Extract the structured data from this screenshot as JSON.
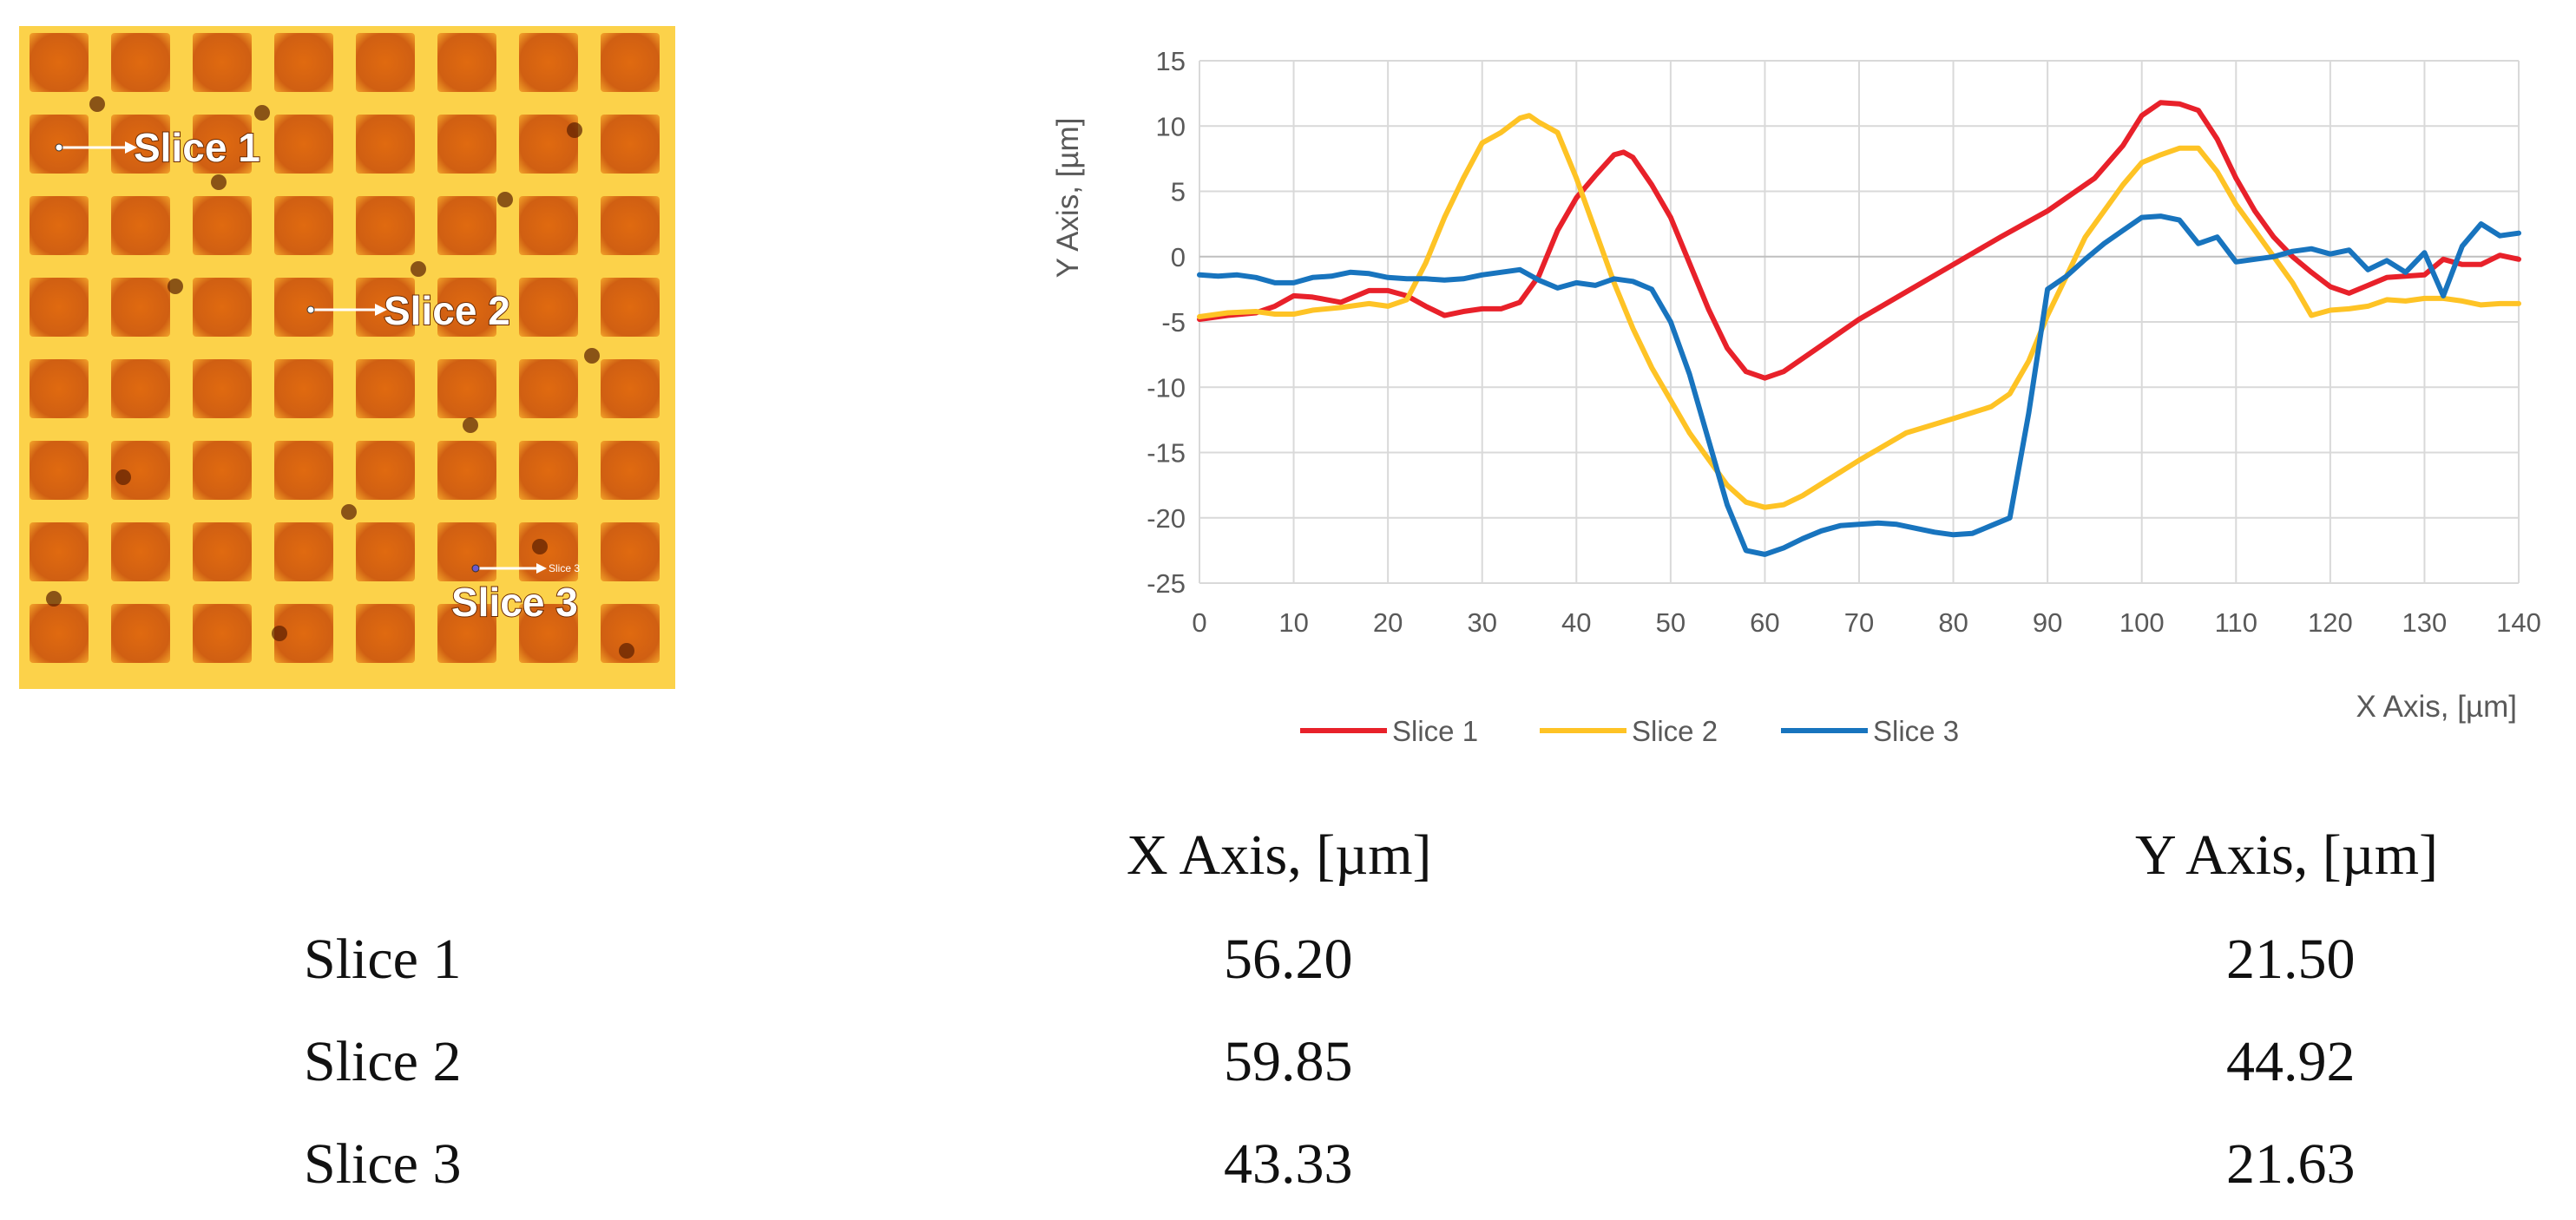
{
  "image_labels": {
    "slice1": "Slice 1",
    "slice2": "Slice 2",
    "slice3": "Slice 3",
    "slice3_small": "Slice 3"
  },
  "chart_data": {
    "type": "line",
    "xlabel": "X Axis, [µm]",
    "ylabel": "Y Axis, [µm]",
    "xlim": [
      0,
      140
    ],
    "ylim": [
      -25,
      15
    ],
    "xticks": [
      0,
      10,
      20,
      30,
      40,
      50,
      60,
      70,
      80,
      90,
      100,
      110,
      120,
      130,
      140
    ],
    "yticks": [
      15,
      10,
      5,
      0,
      -5,
      -10,
      -15,
      -20,
      -25
    ],
    "grid": true,
    "legend": "bottom",
    "series": [
      {
        "name": "Slice 1",
        "color": "#e8212a",
        "points": [
          [
            0,
            -4.8
          ],
          [
            3,
            -4.5
          ],
          [
            6,
            -4.3
          ],
          [
            8,
            -3.8
          ],
          [
            10,
            -3.0
          ],
          [
            12,
            -3.1
          ],
          [
            15,
            -3.5
          ],
          [
            18,
            -2.6
          ],
          [
            20,
            -2.6
          ],
          [
            22,
            -3.0
          ],
          [
            24,
            -3.8
          ],
          [
            26,
            -4.5
          ],
          [
            28,
            -4.2
          ],
          [
            30,
            -4.0
          ],
          [
            32,
            -4.0
          ],
          [
            34,
            -3.5
          ],
          [
            36,
            -1.5
          ],
          [
            38,
            2.0
          ],
          [
            40,
            4.5
          ],
          [
            42,
            6.2
          ],
          [
            44,
            7.8
          ],
          [
            45,
            8.0
          ],
          [
            46,
            7.6
          ],
          [
            48,
            5.5
          ],
          [
            50,
            3.0
          ],
          [
            52,
            -0.5
          ],
          [
            54,
            -4.0
          ],
          [
            56,
            -7.0
          ],
          [
            58,
            -8.8
          ],
          [
            60,
            -9.3
          ],
          [
            62,
            -8.8
          ],
          [
            64,
            -7.8
          ],
          [
            66,
            -6.8
          ],
          [
            68,
            -5.8
          ],
          [
            70,
            -4.8
          ],
          [
            75,
            -2.7
          ],
          [
            80,
            -0.6
          ],
          [
            85,
            1.5
          ],
          [
            90,
            3.5
          ],
          [
            95,
            6.0
          ],
          [
            98,
            8.5
          ],
          [
            100,
            10.8
          ],
          [
            102,
            11.8
          ],
          [
            104,
            11.7
          ],
          [
            106,
            11.2
          ],
          [
            108,
            9.0
          ],
          [
            110,
            6.0
          ],
          [
            112,
            3.5
          ],
          [
            114,
            1.5
          ],
          [
            116,
            0
          ],
          [
            118,
            -1.2
          ],
          [
            120,
            -2.3
          ],
          [
            122,
            -2.8
          ],
          [
            124,
            -2.2
          ],
          [
            126,
            -1.6
          ],
          [
            128,
            -1.5
          ],
          [
            130,
            -1.4
          ],
          [
            132,
            -0.2
          ],
          [
            134,
            -0.6
          ],
          [
            136,
            -0.6
          ],
          [
            138,
            0.1
          ],
          [
            140,
            -0.2
          ]
        ]
      },
      {
        "name": "Slice 2",
        "color": "#fec325",
        "points": [
          [
            0,
            -4.6
          ],
          [
            3,
            -4.3
          ],
          [
            6,
            -4.2
          ],
          [
            8,
            -4.4
          ],
          [
            10,
            -4.4
          ],
          [
            12,
            -4.1
          ],
          [
            15,
            -3.9
          ],
          [
            18,
            -3.6
          ],
          [
            20,
            -3.8
          ],
          [
            22,
            -3.3
          ],
          [
            24,
            -0.5
          ],
          [
            26,
            3.0
          ],
          [
            28,
            6.0
          ],
          [
            30,
            8.7
          ],
          [
            32,
            9.5
          ],
          [
            34,
            10.6
          ],
          [
            35,
            10.8
          ],
          [
            36,
            10.3
          ],
          [
            38,
            9.5
          ],
          [
            40,
            6.0
          ],
          [
            42,
            2.0
          ],
          [
            44,
            -2.0
          ],
          [
            46,
            -5.5
          ],
          [
            48,
            -8.5
          ],
          [
            50,
            -11.0
          ],
          [
            52,
            -13.5
          ],
          [
            54,
            -15.5
          ],
          [
            56,
            -17.5
          ],
          [
            58,
            -18.8
          ],
          [
            60,
            -19.2
          ],
          [
            62,
            -19.0
          ],
          [
            64,
            -18.3
          ],
          [
            66,
            -17.4
          ],
          [
            68,
            -16.5
          ],
          [
            70,
            -15.6
          ],
          [
            75,
            -13.5
          ],
          [
            80,
            -12.4
          ],
          [
            84,
            -11.5
          ],
          [
            86,
            -10.5
          ],
          [
            88,
            -8.0
          ],
          [
            90,
            -4.5
          ],
          [
            92,
            -1.5
          ],
          [
            94,
            1.5
          ],
          [
            96,
            3.5
          ],
          [
            98,
            5.5
          ],
          [
            100,
            7.2
          ],
          [
            102,
            7.8
          ],
          [
            104,
            8.3
          ],
          [
            106,
            8.3
          ],
          [
            108,
            6.5
          ],
          [
            110,
            4.0
          ],
          [
            112,
            2.0
          ],
          [
            114,
            0
          ],
          [
            116,
            -2.0
          ],
          [
            118,
            -4.5
          ],
          [
            120,
            -4.1
          ],
          [
            122,
            -4.0
          ],
          [
            124,
            -3.8
          ],
          [
            126,
            -3.3
          ],
          [
            128,
            -3.4
          ],
          [
            130,
            -3.2
          ],
          [
            132,
            -3.2
          ],
          [
            134,
            -3.4
          ],
          [
            136,
            -3.7
          ],
          [
            138,
            -3.6
          ],
          [
            140,
            -3.6
          ]
        ]
      },
      {
        "name": "Slice 3",
        "color": "#1874be",
        "points": [
          [
            0,
            -1.4
          ],
          [
            2,
            -1.5
          ],
          [
            4,
            -1.4
          ],
          [
            6,
            -1.6
          ],
          [
            8,
            -2.0
          ],
          [
            10,
            -2.0
          ],
          [
            12,
            -1.6
          ],
          [
            14,
            -1.5
          ],
          [
            16,
            -1.2
          ],
          [
            18,
            -1.3
          ],
          [
            20,
            -1.6
          ],
          [
            22,
            -1.7
          ],
          [
            24,
            -1.7
          ],
          [
            26,
            -1.8
          ],
          [
            28,
            -1.7
          ],
          [
            30,
            -1.4
          ],
          [
            32,
            -1.2
          ],
          [
            34,
            -1.0
          ],
          [
            36,
            -1.8
          ],
          [
            38,
            -2.4
          ],
          [
            40,
            -2.0
          ],
          [
            42,
            -2.2
          ],
          [
            44,
            -1.7
          ],
          [
            46,
            -1.9
          ],
          [
            48,
            -2.5
          ],
          [
            50,
            -5.0
          ],
          [
            52,
            -9.0
          ],
          [
            54,
            -14.0
          ],
          [
            56,
            -19.0
          ],
          [
            58,
            -22.5
          ],
          [
            60,
            -22.8
          ],
          [
            62,
            -22.3
          ],
          [
            64,
            -21.6
          ],
          [
            66,
            -21.0
          ],
          [
            68,
            -20.6
          ],
          [
            70,
            -20.5
          ],
          [
            72,
            -20.4
          ],
          [
            74,
            -20.5
          ],
          [
            76,
            -20.8
          ],
          [
            78,
            -21.1
          ],
          [
            80,
            -21.3
          ],
          [
            82,
            -21.2
          ],
          [
            84,
            -20.6
          ],
          [
            86,
            -20.0
          ],
          [
            88,
            -12.0
          ],
          [
            90,
            -2.5
          ],
          [
            92,
            -1.5
          ],
          [
            94,
            -0.2
          ],
          [
            96,
            1.0
          ],
          [
            98,
            2.0
          ],
          [
            100,
            3.0
          ],
          [
            102,
            3.1
          ],
          [
            104,
            2.8
          ],
          [
            106,
            1.0
          ],
          [
            108,
            1.5
          ],
          [
            110,
            -0.4
          ],
          [
            112,
            -0.2
          ],
          [
            114,
            0
          ],
          [
            116,
            0.4
          ],
          [
            118,
            0.6
          ],
          [
            120,
            0.2
          ],
          [
            122,
            0.5
          ],
          [
            124,
            -1.0
          ],
          [
            126,
            -0.3
          ],
          [
            128,
            -1.2
          ],
          [
            130,
            0.3
          ],
          [
            132,
            -3.0
          ],
          [
            134,
            0.8
          ],
          [
            136,
            2.5
          ],
          [
            138,
            1.6
          ],
          [
            140,
            1.8
          ]
        ]
      }
    ]
  },
  "table": {
    "headers": [
      "",
      "X Axis, [µm]",
      "Y Axis, [µm]"
    ],
    "rows": [
      {
        "label": "Slice 1",
        "x": "56.20",
        "y": "21.50"
      },
      {
        "label": "Slice 2",
        "x": "59.85",
        "y": "44.92"
      },
      {
        "label": "Slice 3",
        "x": "43.33",
        "y": "21.63"
      }
    ]
  }
}
